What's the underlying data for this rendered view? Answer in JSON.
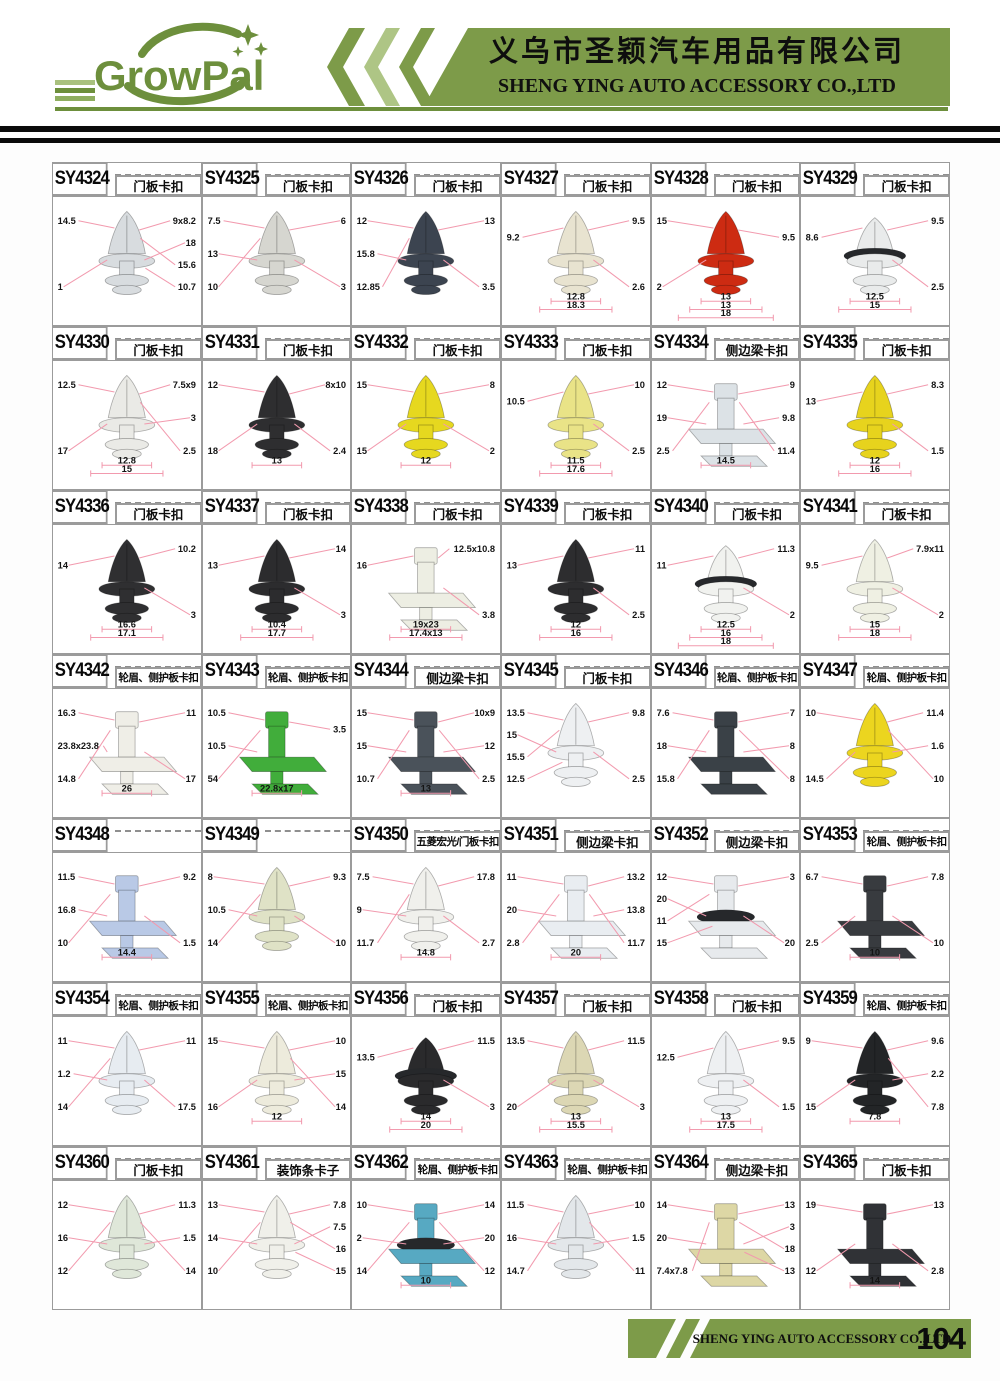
{
  "header": {
    "logo_text": "GrowPal",
    "company_cn": "义乌市圣颖汽车用品有限公司",
    "company_en": "SHENG YING AUTO ACCESSORY CO.,LTD"
  },
  "footer": {
    "company_en": "SHENG YING AUTO ACCESSORY CO.,LTD",
    "page_number": "104"
  },
  "colors": {
    "brand_green": "#6d8f3c",
    "banner_green": "#7d9b49",
    "light_green": "#a9c17e",
    "dim_line_pink": "#f29aae",
    "foam_black": "#26282b"
  },
  "products": [
    {
      "id": "SY4324",
      "label": "门板卡扣",
      "color": "#d8dcdf",
      "variant": "pin",
      "foam": false,
      "dims": {
        "left": [
          "14.5",
          "1"
        ],
        "right": [
          "9x8.2",
          "18",
          "15.6",
          "10.7"
        ],
        "bottom": []
      }
    },
    {
      "id": "SY4325",
      "label": "门板卡扣",
      "color": "#d6d6d0",
      "variant": "pin",
      "foam": false,
      "dims": {
        "left": [
          "7.5",
          "13",
          "10"
        ],
        "right": [
          "6",
          "3"
        ],
        "bottom": []
      }
    },
    {
      "id": "SY4326",
      "label": "门板卡扣",
      "color": "#3c4450",
      "variant": "pin",
      "foam": false,
      "dims": {
        "left": [
          "12",
          "15.8",
          "12.85"
        ],
        "right": [
          "13",
          "3.5"
        ],
        "bottom": []
      }
    },
    {
      "id": "SY4327",
      "label": "门板卡扣",
      "color": "#e8e3d0",
      "variant": "pin",
      "foam": false,
      "dims": {
        "left": [
          "9.2"
        ],
        "right": [
          "9.5",
          "2.6"
        ],
        "bottom": [
          "12.8",
          "18.3"
        ]
      }
    },
    {
      "id": "SY4328",
      "label": "门板卡扣",
      "color": "#cd2b12",
      "variant": "pin",
      "foam": false,
      "dims": {
        "left": [
          "15",
          "2"
        ],
        "right": [
          "9.5"
        ],
        "bottom": [
          "13",
          "13",
          "18"
        ]
      }
    },
    {
      "id": "SY4329",
      "label": "门板卡扣",
      "color": "#e9ebeb",
      "variant": "pin",
      "foam": true,
      "dims": {
        "left": [
          "8.6"
        ],
        "right": [
          "9.5",
          "2.5"
        ],
        "bottom": [
          "12.5",
          "15"
        ]
      }
    },
    {
      "id": "SY4330",
      "label": "门板卡扣",
      "color": "#eaeae6",
      "variant": "pin",
      "foam": false,
      "dims": {
        "left": [
          "12.5",
          "17"
        ],
        "right": [
          "7.5x9",
          "3",
          "2.5"
        ],
        "bottom": [
          "12.8",
          "15"
        ]
      }
    },
    {
      "id": "SY4331",
      "label": "门板卡扣",
      "color": "#2e2e30",
      "variant": "pin",
      "foam": false,
      "dims": {
        "left": [
          "12",
          "18"
        ],
        "right": [
          "8x10",
          "2.4"
        ],
        "bottom": [
          "13"
        ]
      }
    },
    {
      "id": "SY4332",
      "label": "门板卡扣",
      "color": "#e6d81f",
      "variant": "pin",
      "foam": false,
      "dims": {
        "left": [
          "15",
          "15"
        ],
        "right": [
          "8",
          "2"
        ],
        "bottom": [
          "12"
        ]
      }
    },
    {
      "id": "SY4333",
      "label": "门板卡扣",
      "color": "#e9e387",
      "variant": "pin",
      "foam": false,
      "dims": {
        "left": [
          "10.5"
        ],
        "right": [
          "10",
          "2.5"
        ],
        "bottom": [
          "11.5",
          "17.6"
        ]
      }
    },
    {
      "id": "SY4334",
      "label": "侧边梁卡扣",
      "color": "#dce2e6",
      "variant": "block",
      "foam": false,
      "dims": {
        "left": [
          "12",
          "19",
          "2.5"
        ],
        "right": [
          "9",
          "9.8",
          "11.4"
        ],
        "bottom": [
          "14.5"
        ]
      }
    },
    {
      "id": "SY4335",
      "label": "门板卡扣",
      "color": "#e7d31d",
      "variant": "pin",
      "foam": false,
      "dims": {
        "left": [
          "13"
        ],
        "right": [
          "8.3",
          "1.5"
        ],
        "bottom": [
          "12",
          "16"
        ]
      }
    },
    {
      "id": "SY4336",
      "label": "门板卡扣",
      "color": "#2f2f31",
      "variant": "pin",
      "foam": false,
      "dims": {
        "left": [
          "14"
        ],
        "right": [
          "10.2",
          "3"
        ],
        "bottom": [
          "16.6",
          "17.1"
        ]
      }
    },
    {
      "id": "SY4337",
      "label": "门板卡扣",
      "color": "#2c2c2e",
      "variant": "pin",
      "foam": false,
      "dims": {
        "left": [
          "13"
        ],
        "right": [
          "14",
          "3"
        ],
        "bottom": [
          "10.4",
          "17.7"
        ]
      }
    },
    {
      "id": "SY4338",
      "label": "门板卡扣",
      "color": "#edeee3",
      "variant": "block",
      "foam": false,
      "dims": {
        "left": [
          "16"
        ],
        "right": [
          "12.5x10.8",
          "3.8"
        ],
        "bottom": [
          "19x23",
          "17.4x13"
        ]
      }
    },
    {
      "id": "SY4339",
      "label": "门板卡扣",
      "color": "#2d2d2f",
      "variant": "pin",
      "foam": false,
      "dims": {
        "left": [
          "13"
        ],
        "right": [
          "11",
          "2.5"
        ],
        "bottom": [
          "12",
          "16"
        ]
      }
    },
    {
      "id": "SY4340",
      "label": "门板卡扣",
      "color": "#f1f2ef",
      "variant": "pin",
      "foam": true,
      "dims": {
        "left": [
          "11"
        ],
        "right": [
          "11.3",
          "2"
        ],
        "bottom": [
          "12.5",
          "16",
          "18"
        ]
      }
    },
    {
      "id": "SY4341",
      "label": "门板卡扣",
      "color": "#eff0e3",
      "variant": "pin",
      "foam": false,
      "dims": {
        "left": [
          "9.5"
        ],
        "right": [
          "7.9x11",
          "2"
        ],
        "bottom": [
          "15",
          "18"
        ]
      }
    },
    {
      "id": "SY4342",
      "label": "轮眉、侧护板卡扣",
      "color": "#efeee7",
      "variant": "block",
      "foam": false,
      "dims": {
        "left": [
          "16.3",
          "23.8x23.8",
          "14.8"
        ],
        "right": [
          "11",
          "17"
        ],
        "bottom": [
          "26"
        ]
      }
    },
    {
      "id": "SY4343",
      "label": "轮眉、侧护板卡扣",
      "color": "#41ad3b",
      "variant": "block",
      "foam": false,
      "dims": {
        "left": [
          "10.5",
          "10.5",
          "54"
        ],
        "right": [
          "3.5"
        ],
        "bottom": [
          "22.8x17"
        ]
      }
    },
    {
      "id": "SY4344",
      "label": "侧边梁卡扣",
      "color": "#4a525a",
      "variant": "block",
      "foam": false,
      "dims": {
        "left": [
          "15",
          "15",
          "10.7"
        ],
        "right": [
          "10x9",
          "12",
          "2.5"
        ],
        "bottom": [
          "13"
        ]
      }
    },
    {
      "id": "SY4345",
      "label": "门板卡扣",
      "color": "#eef0f2",
      "variant": "pin",
      "foam": false,
      "dims": {
        "left": [
          "13.5",
          "15",
          "15.5",
          "12.5"
        ],
        "right": [
          "9.8",
          "2.5"
        ],
        "bottom": []
      }
    },
    {
      "id": "SY4346",
      "label": "轮眉、侧护板卡扣",
      "color": "#3a4147",
      "variant": "block",
      "foam": false,
      "dims": {
        "left": [
          "7.6",
          "18",
          "15.8"
        ],
        "right": [
          "7",
          "8",
          "8"
        ],
        "bottom": []
      }
    },
    {
      "id": "SY4347",
      "label": "轮眉、侧护板卡扣",
      "color": "#ecd51f",
      "variant": "pin",
      "foam": false,
      "dims": {
        "left": [
          "10",
          "14.5"
        ],
        "right": [
          "11.4",
          "1.6",
          "10"
        ],
        "bottom": []
      }
    },
    {
      "id": "SY4348",
      "label": "",
      "color": "#b9c9e6",
      "variant": "block",
      "foam": false,
      "dims": {
        "left": [
          "11.5",
          "16.8",
          "10"
        ],
        "right": [
          "9.2",
          "1.5"
        ],
        "bottom": [
          "14.4"
        ]
      }
    },
    {
      "id": "SY4349",
      "label": "",
      "color": "#dfe2c6",
      "variant": "pin",
      "foam": false,
      "dims": {
        "left": [
          "8",
          "10.5",
          "14"
        ],
        "right": [
          "9.3",
          "10"
        ],
        "bottom": []
      }
    },
    {
      "id": "SY4350",
      "label": "五菱宏光/门板卡扣",
      "color": "#f0f0ec",
      "variant": "pin",
      "foam": false,
      "dims": {
        "left": [
          "7.5",
          "9",
          "11.7"
        ],
        "right": [
          "17.8",
          "2.7"
        ],
        "bottom": [
          "14.8"
        ]
      }
    },
    {
      "id": "SY4351",
      "label": "侧边梁卡扣",
      "color": "#e9edf1",
      "variant": "block",
      "foam": false,
      "dims": {
        "left": [
          "11",
          "20",
          "2.8"
        ],
        "right": [
          "13.2",
          "13.8",
          "11.7"
        ],
        "bottom": [
          "20"
        ]
      }
    },
    {
      "id": "SY4352",
      "label": "侧边梁卡扣",
      "color": "#e7eaed",
      "variant": "block",
      "foam": true,
      "dims": {
        "left": [
          "12",
          "20",
          "11",
          "15"
        ],
        "right": [
          "3",
          "20"
        ],
        "bottom": []
      }
    },
    {
      "id": "SY4353",
      "label": "轮眉、侧护板卡扣",
      "color": "#383b3f",
      "variant": "block",
      "foam": false,
      "dims": {
        "left": [
          "6.7",
          "2.5"
        ],
        "right": [
          "7.8",
          "10"
        ],
        "bottom": [
          "10"
        ]
      }
    },
    {
      "id": "SY4354",
      "label": "轮眉、侧护板卡扣",
      "color": "#e7ecf1",
      "variant": "pin",
      "foam": false,
      "dims": {
        "left": [
          "11",
          "1.2",
          "14"
        ],
        "right": [
          "11",
          "17.5"
        ],
        "bottom": []
      }
    },
    {
      "id": "SY4355",
      "label": "轮眉、侧护板卡扣",
      "color": "#edebdc",
      "variant": "pin",
      "foam": false,
      "dims": {
        "left": [
          "15",
          "16"
        ],
        "right": [
          "10",
          "15",
          "14"
        ],
        "bottom": [
          "12"
        ]
      }
    },
    {
      "id": "SY4356",
      "label": "门板卡扣",
      "color": "#2a2a2c",
      "variant": "pin",
      "foam": true,
      "dims": {
        "left": [
          "13.5"
        ],
        "right": [
          "11.5",
          "3"
        ],
        "bottom": [
          "14",
          "20"
        ]
      }
    },
    {
      "id": "SY4357",
      "label": "门板卡扣",
      "color": "#dcd7b4",
      "variant": "pin",
      "foam": false,
      "dims": {
        "left": [
          "13.5",
          "20"
        ],
        "right": [
          "11.5",
          "3"
        ],
        "bottom": [
          "13",
          "15.5"
        ]
      }
    },
    {
      "id": "SY4358",
      "label": "门板卡扣",
      "color": "#eef0f2",
      "variant": "pin",
      "foam": false,
      "dims": {
        "left": [
          "12.5"
        ],
        "right": [
          "9.5",
          "1.5"
        ],
        "bottom": [
          "13",
          "17.5"
        ]
      }
    },
    {
      "id": "SY4359",
      "label": "轮眉、侧护板卡扣",
      "color": "#232527",
      "variant": "pin",
      "foam": false,
      "dims": {
        "left": [
          "9",
          "15"
        ],
        "right": [
          "9.6",
          "2.2",
          "7.8"
        ],
        "bottom": [
          "7.8"
        ]
      }
    },
    {
      "id": "SY4360",
      "label": "门板卡扣",
      "color": "#dfe7d9",
      "variant": "pin",
      "foam": false,
      "dims": {
        "left": [
          "12",
          "16",
          "12"
        ],
        "right": [
          "11.3",
          "1.5",
          "14"
        ],
        "bottom": []
      }
    },
    {
      "id": "SY4361",
      "label": "装饰条卡子",
      "color": "#f0f0ea",
      "variant": "pin",
      "foam": false,
      "dims": {
        "left": [
          "13",
          "14",
          "10"
        ],
        "right": [
          "7.8",
          "7.5",
          "16",
          "15"
        ],
        "bottom": []
      }
    },
    {
      "id": "SY4362",
      "label": "轮眉、侧护板卡扣",
      "color": "#57a9c2",
      "variant": "block",
      "foam": true,
      "dims": {
        "left": [
          "10",
          "2",
          "14"
        ],
        "right": [
          "14",
          "20",
          "12"
        ],
        "bottom": [
          "10"
        ]
      }
    },
    {
      "id": "SY4363",
      "label": "轮眉、侧护板卡扣",
      "color": "#e3e7ea",
      "variant": "pin",
      "foam": false,
      "dims": {
        "left": [
          "11.5",
          "16",
          "14.7"
        ],
        "right": [
          "10",
          "1.5",
          "11"
        ],
        "bottom": []
      }
    },
    {
      "id": "SY4364",
      "label": "侧边梁卡扣",
      "color": "#ddd7a5",
      "variant": "block",
      "foam": false,
      "dims": {
        "left": [
          "14",
          "20",
          "7.4x7.8"
        ],
        "right": [
          "13",
          "3",
          "18",
          "13"
        ],
        "bottom": []
      }
    },
    {
      "id": "SY4365",
      "label": "门板卡扣",
      "color": "#303236",
      "variant": "block",
      "foam": false,
      "dims": {
        "left": [
          "19",
          "12"
        ],
        "right": [
          "13",
          "2.8"
        ],
        "bottom": [
          "14"
        ]
      }
    }
  ]
}
